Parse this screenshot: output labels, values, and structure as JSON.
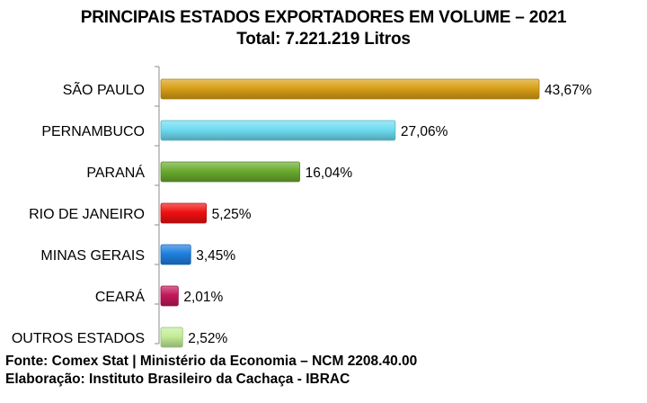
{
  "chart_data": {
    "type": "bar",
    "orientation": "horizontal",
    "title": "PRINCIPAIS ESTADOS EXPORTADORES EM VOLUME – 2021",
    "subtitle": "Total: 7.221.219 Litros",
    "categories": [
      "SÃO PAULO",
      "PERNAMBUCO",
      "PARANÁ",
      "RIO DE JANEIRO",
      "MINAS GERAIS",
      "CEARÁ",
      "OUTROS ESTADOS"
    ],
    "values": [
      43.67,
      27.06,
      16.04,
      5.25,
      3.45,
      2.01,
      2.52
    ],
    "value_labels": [
      "43,67%",
      "27,06%",
      "16,04%",
      "5,25%",
      "3,45%",
      "2,01%",
      "2,52%"
    ],
    "bar_colors": [
      "#d9a017",
      "#6fdcf2",
      "#6aab2e",
      "#f01010",
      "#1e7fe0",
      "#c2185b",
      "#c2ed96"
    ],
    "xlim": [
      0,
      45
    ],
    "grid": false,
    "legend": "none"
  },
  "footer": {
    "source": "Fonte: Comex Stat | Ministério da Economia  – NCM 2208.40.00",
    "credit": "Elaboração: Instituto Brasileiro da Cachaça - IBRAC"
  }
}
